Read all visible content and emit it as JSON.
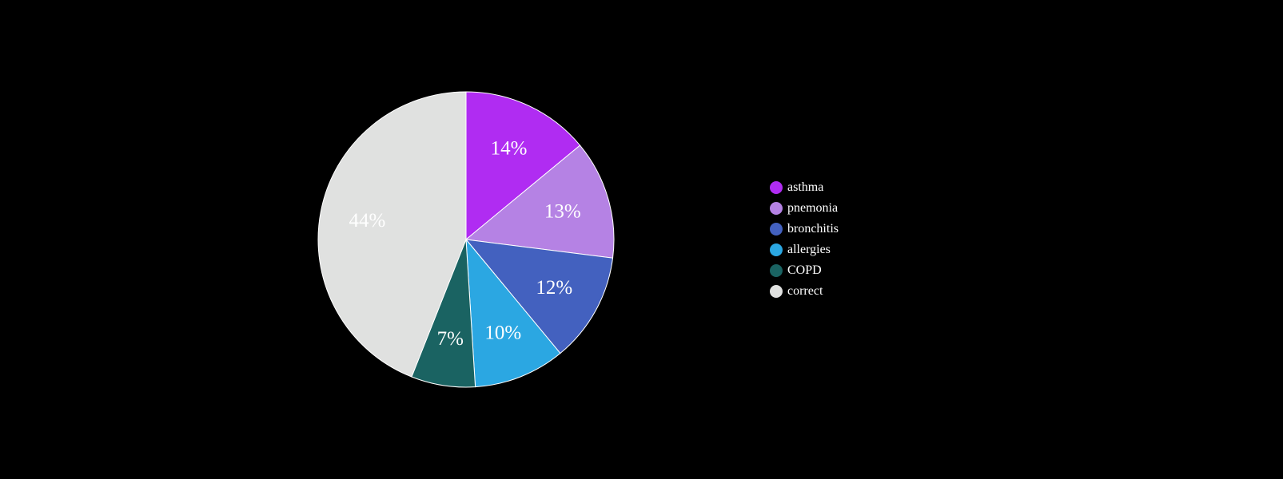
{
  "chart_data": {
    "type": "pie",
    "title": "",
    "categories": [
      "asthma",
      "pnemonia",
      "bronchitis",
      "allergies",
      "COPD",
      "correct"
    ],
    "values": [
      14,
      13,
      12,
      10,
      7,
      44
    ],
    "data_labels": [
      "14%",
      "13%",
      "12%",
      "10%",
      "7%",
      "44%"
    ],
    "colors": [
      "#b02cf2",
      "#b582e4",
      "#4361bf",
      "#2ba7e2",
      "#1a6362",
      "#e0e1e0"
    ],
    "legend": {
      "position": "right",
      "items": [
        {
          "label": "asthma",
          "color": "#b02cf2"
        },
        {
          "label": "pnemonia",
          "color": "#b582e4"
        },
        {
          "label": "bronchitis",
          "color": "#4361bf"
        },
        {
          "label": "allergies",
          "color": "#2ba7e2"
        },
        {
          "label": "COPD",
          "color": "#1a6362"
        },
        {
          "label": "correct",
          "color": "#e0e1e0"
        }
      ]
    },
    "background": "#000000",
    "slice_border_color": "#ffffff"
  }
}
